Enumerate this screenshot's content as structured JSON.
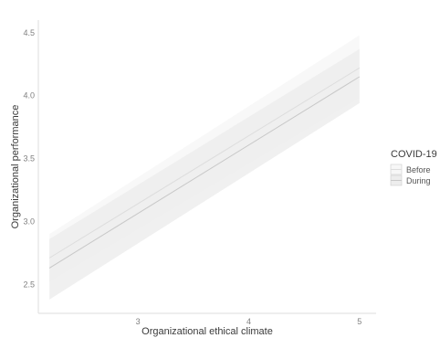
{
  "chart_data": {
    "type": "line",
    "title": "",
    "xlabel": "Organizational ethical climate",
    "ylabel": "Organizational performance",
    "xlim": [
      2.1,
      5.15
    ],
    "ylim": [
      2.27,
      4.6
    ],
    "x_ticks": [
      "3",
      "4",
      "5"
    ],
    "y_ticks": [
      "2.5",
      "3.0",
      "3.5",
      "4.0",
      "4.5"
    ],
    "grid": false,
    "legend": {
      "title": "COVID-19",
      "placement": "right",
      "entries": [
        "Before",
        "During"
      ]
    },
    "series": [
      {
        "name": "Before",
        "color": "#dddddd",
        "band_color": "#f7f7f7",
        "x": [
          2.2,
          5.0
        ],
        "y": [
          2.71,
          4.22
        ],
        "lower": [
          2.52,
          3.98
        ],
        "upper": [
          2.9,
          4.48
        ]
      },
      {
        "name": "During",
        "color": "#c8c8c8",
        "band_color": "#ededed",
        "x": [
          2.2,
          5.0
        ],
        "y": [
          2.63,
          4.15
        ],
        "lower": [
          2.38,
          3.94
        ],
        "upper": [
          2.86,
          4.37
        ]
      }
    ]
  }
}
